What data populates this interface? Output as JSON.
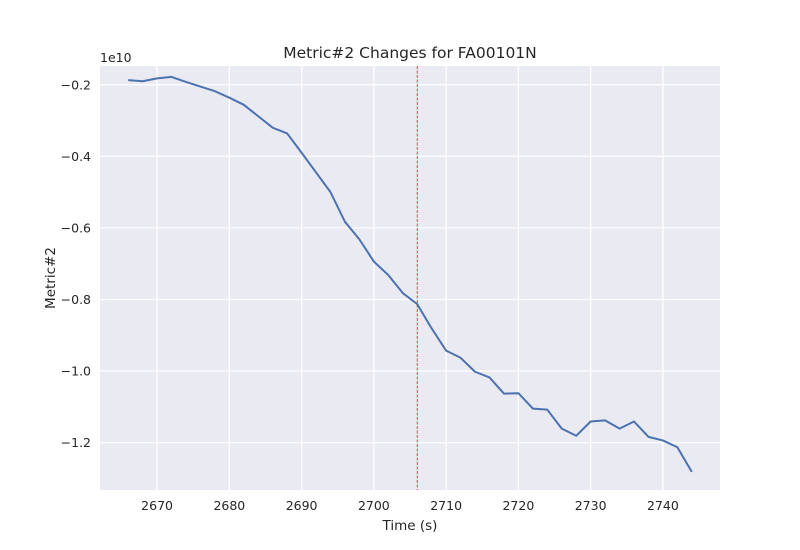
{
  "chart_data": {
    "type": "line",
    "title": "Metric#2 Changes for FA00101N",
    "xlabel": "Time (s)",
    "ylabel": "Metric#2",
    "y_offset_label": "1e10",
    "xlim": [
      2662.1,
      2747.9
    ],
    "ylim": [
      -1.3325,
      -0.1475
    ],
    "y_scale_note": "values in units of 1e10",
    "x_ticks": [
      2670,
      2680,
      2690,
      2700,
      2710,
      2720,
      2730,
      2740
    ],
    "x_tick_labels": [
      "2670",
      "2680",
      "2690",
      "2700",
      "2710",
      "2720",
      "2730",
      "2740"
    ],
    "y_ticks": [
      -1.2,
      -1.0,
      -0.8,
      -0.6,
      -0.4,
      -0.2
    ],
    "y_tick_labels": [
      "−1.2",
      "−1.0",
      "−0.8",
      "−0.6",
      "−0.4",
      "−0.2"
    ],
    "grid": true,
    "series": [
      {
        "color": "#4c72b0",
        "x": [
          2666,
          2668,
          2670,
          2672,
          2674,
          2676,
          2678,
          2680,
          2682,
          2684,
          2686,
          2688,
          2690,
          2692,
          2694,
          2696,
          2698,
          2700,
          2702,
          2704,
          2706,
          2708,
          2710,
          2712,
          2714,
          2716,
          2718,
          2720,
          2722,
          2724,
          2726,
          2728,
          2730,
          2732,
          2734,
          2736,
          2738,
          2740,
          2742,
          2744
        ],
        "y": [
          -0.187,
          -0.19,
          -0.182,
          -0.178,
          -0.192,
          -0.205,
          -0.218,
          -0.236,
          -0.256,
          -0.288,
          -0.32,
          -0.336,
          -0.39,
          -0.445,
          -0.5,
          -0.583,
          -0.632,
          -0.694,
          -0.732,
          -0.782,
          -0.813,
          -0.881,
          -0.943,
          -0.963,
          -1.002,
          -1.018,
          -1.063,
          -1.062,
          -1.105,
          -1.108,
          -1.161,
          -1.181,
          -1.141,
          -1.138,
          -1.161,
          -1.141,
          -1.184,
          -1.194,
          -1.213,
          -1.282
        ]
      }
    ],
    "vline": {
      "x": 2706,
      "color": "#e31a1c",
      "style": "dashed"
    },
    "background": "#eaeaf2",
    "grid_color": "#ffffff"
  }
}
